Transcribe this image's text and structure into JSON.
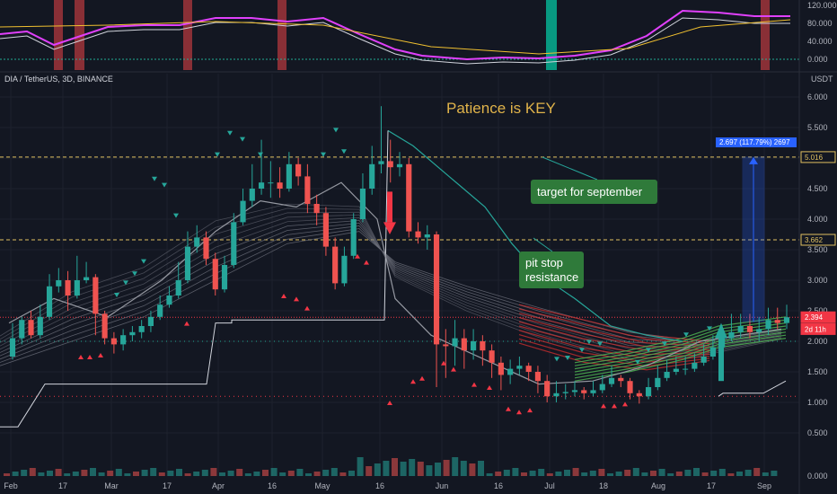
{
  "chart_data": {
    "type": "candlestick",
    "title": "DIA / TetherUS, 3D, BINANCE",
    "currency": "USDT",
    "y_ticks": [
      "6.000",
      "5.500",
      "5.000",
      "4.500",
      "4.000",
      "3.500",
      "3.000",
      "2.500",
      "2.000",
      "1.500",
      "1.000",
      "0.500"
    ],
    "y_range": [
      0.2,
      6.45
    ],
    "x_ticks": [
      "Feb",
      "17",
      "Mar",
      "17",
      "Apr",
      "16",
      "May",
      "16",
      "Jun",
      "16",
      "Jul",
      "18",
      "Aug",
      "17",
      "Sep"
    ],
    "osc_ticks": [
      "120.000",
      "80.000",
      "40.000",
      "0.000"
    ],
    "vol_tick": "0.000",
    "price_tags": [
      {
        "text": "5.016",
        "value": 5.016,
        "bg": "#131722",
        "fg": "#e0c060",
        "border": "#e0c060"
      },
      {
        "text": "3.662",
        "value": 3.662,
        "bg": "#131722",
        "fg": "#e0c060",
        "border": "#e0c060"
      },
      {
        "text": "2.394",
        "value": 2.394,
        "bg": "#f23645",
        "fg": "#ffffff",
        "border": "#f23645"
      },
      {
        "text": "2d 11h",
        "value": 2.2,
        "bg": "#f23645",
        "fg": "#ffffff",
        "border": "#f23645"
      }
    ],
    "lines": {
      "target_level": 5.016,
      "resistance_level": 3.662,
      "last_price": 2.394
    },
    "measure_label": "2.697 (117.79%) 2697",
    "annotations": {
      "headline": "Patience is KEY",
      "target_box": "target for september",
      "pitstop_box_line1": "pit stop",
      "pitstop_box_line2": "resistance"
    },
    "candles": [
      [
        1.75,
        2.05,
        2.3,
        1.7
      ],
      [
        2.05,
        2.35,
        2.4,
        1.95
      ],
      [
        2.35,
        2.1,
        2.5,
        2.05
      ],
      [
        2.1,
        2.4,
        2.6,
        2.05
      ],
      [
        2.4,
        2.9,
        3.1,
        2.35
      ],
      [
        2.9,
        3.0,
        3.2,
        2.8
      ],
      [
        3.0,
        2.75,
        3.15,
        2.5
      ],
      [
        2.75,
        3.0,
        3.4,
        2.7
      ],
      [
        3.0,
        3.05,
        3.3,
        2.95
      ],
      [
        3.05,
        2.45,
        3.1,
        2.1
      ],
      [
        2.45,
        2.05,
        2.5,
        1.95
      ],
      [
        2.05,
        1.95,
        2.15,
        1.8
      ],
      [
        1.95,
        2.1,
        2.2,
        1.85
      ],
      [
        2.1,
        2.15,
        2.25,
        2.0
      ],
      [
        2.15,
        2.25,
        2.35,
        2.05
      ],
      [
        2.25,
        2.4,
        2.5,
        2.15
      ],
      [
        2.4,
        2.6,
        2.75,
        2.35
      ],
      [
        2.6,
        2.75,
        2.9,
        2.55
      ],
      [
        2.75,
        3.0,
        3.3,
        2.7
      ],
      [
        3.0,
        3.55,
        3.8,
        2.95
      ],
      [
        3.55,
        3.7,
        3.9,
        3.45
      ],
      [
        3.7,
        3.35,
        3.8,
        3.25
      ],
      [
        3.35,
        2.85,
        3.45,
        2.75
      ],
      [
        2.85,
        3.25,
        3.4,
        2.8
      ],
      [
        3.25,
        3.95,
        4.1,
        3.2
      ],
      [
        3.95,
        4.3,
        4.5,
        3.9
      ],
      [
        4.3,
        4.5,
        4.9,
        4.2
      ],
      [
        4.5,
        4.6,
        5.3,
        4.4
      ],
      [
        4.6,
        4.6,
        4.95,
        4.35
      ],
      [
        4.6,
        4.5,
        4.85,
        4.35
      ],
      [
        4.5,
        4.9,
        5.1,
        4.45
      ],
      [
        4.9,
        4.7,
        5.0,
        4.55
      ],
      [
        4.7,
        4.25,
        4.9,
        4.1
      ],
      [
        4.25,
        4.1,
        4.4,
        3.9
      ],
      [
        4.1,
        3.55,
        4.2,
        3.4
      ],
      [
        3.55,
        2.95,
        3.7,
        2.85
      ],
      [
        2.95,
        3.4,
        3.55,
        2.9
      ],
      [
        3.4,
        4.0,
        4.1,
        3.35
      ],
      [
        4.0,
        4.5,
        4.75,
        3.95
      ],
      [
        4.5,
        4.9,
        5.2,
        4.4
      ],
      [
        4.9,
        4.95,
        5.85,
        4.75
      ],
      [
        4.95,
        4.85,
        5.3,
        4.6
      ],
      [
        4.85,
        4.9,
        5.1,
        4.7
      ],
      [
        4.9,
        3.8,
        5.0,
        3.7
      ],
      [
        3.8,
        3.7,
        3.95,
        3.6
      ],
      [
        3.7,
        3.75,
        3.9,
        3.5
      ],
      [
        3.75,
        1.95,
        3.8,
        1.25
      ],
      [
        1.95,
        1.92,
        2.2,
        1.4
      ],
      [
        1.92,
        2.05,
        2.35,
        1.6
      ],
      [
        2.05,
        1.85,
        2.2,
        1.55
      ],
      [
        1.85,
        2.0,
        2.2,
        1.7
      ],
      [
        2.0,
        1.85,
        2.1,
        1.6
      ],
      [
        1.85,
        1.65,
        1.95,
        1.4
      ],
      [
        1.65,
        1.45,
        1.75,
        1.2
      ],
      [
        1.45,
        1.55,
        1.7,
        1.3
      ],
      [
        1.55,
        1.6,
        1.75,
        1.45
      ],
      [
        1.6,
        1.5,
        1.65,
        1.35
      ],
      [
        1.5,
        1.35,
        1.6,
        1.15
      ],
      [
        1.35,
        1.1,
        1.45,
        1.0
      ],
      [
        1.1,
        1.15,
        1.35,
        1.0
      ],
      [
        1.15,
        1.17,
        1.3,
        1.05
      ],
      [
        1.17,
        1.2,
        1.35,
        1.1
      ],
      [
        1.2,
        1.15,
        1.25,
        1.05
      ],
      [
        1.15,
        1.2,
        1.35,
        1.1
      ],
      [
        1.2,
        1.3,
        1.45,
        1.15
      ],
      [
        1.3,
        1.4,
        1.6,
        1.25
      ],
      [
        1.4,
        1.35,
        1.45,
        1.25
      ],
      [
        1.35,
        1.15,
        1.4,
        1.05
      ],
      [
        1.15,
        1.1,
        1.2,
        0.98
      ],
      [
        1.1,
        1.25,
        1.4,
        1.05
      ],
      [
        1.25,
        1.4,
        1.6,
        1.2
      ],
      [
        1.4,
        1.5,
        1.7,
        1.35
      ],
      [
        1.5,
        1.55,
        1.75,
        1.45
      ],
      [
        1.55,
        1.55,
        1.75,
        1.45
      ],
      [
        1.55,
        1.65,
        1.8,
        1.5
      ],
      [
        1.65,
        1.75,
        1.95,
        1.6
      ],
      [
        1.75,
        1.9,
        2.1,
        1.7
      ],
      [
        1.9,
        2.05,
        2.25,
        1.85
      ],
      [
        2.05,
        2.15,
        2.45,
        2.0
      ],
      [
        2.15,
        2.25,
        2.45,
        2.05
      ],
      [
        2.25,
        2.15,
        2.45,
        2.05
      ],
      [
        2.15,
        2.2,
        2.4,
        2.0
      ],
      [
        2.2,
        2.35,
        2.55,
        2.1
      ],
      [
        2.35,
        2.3,
        2.55,
        2.2
      ],
      [
        2.3,
        2.394,
        2.6,
        2.2
      ]
    ]
  }
}
